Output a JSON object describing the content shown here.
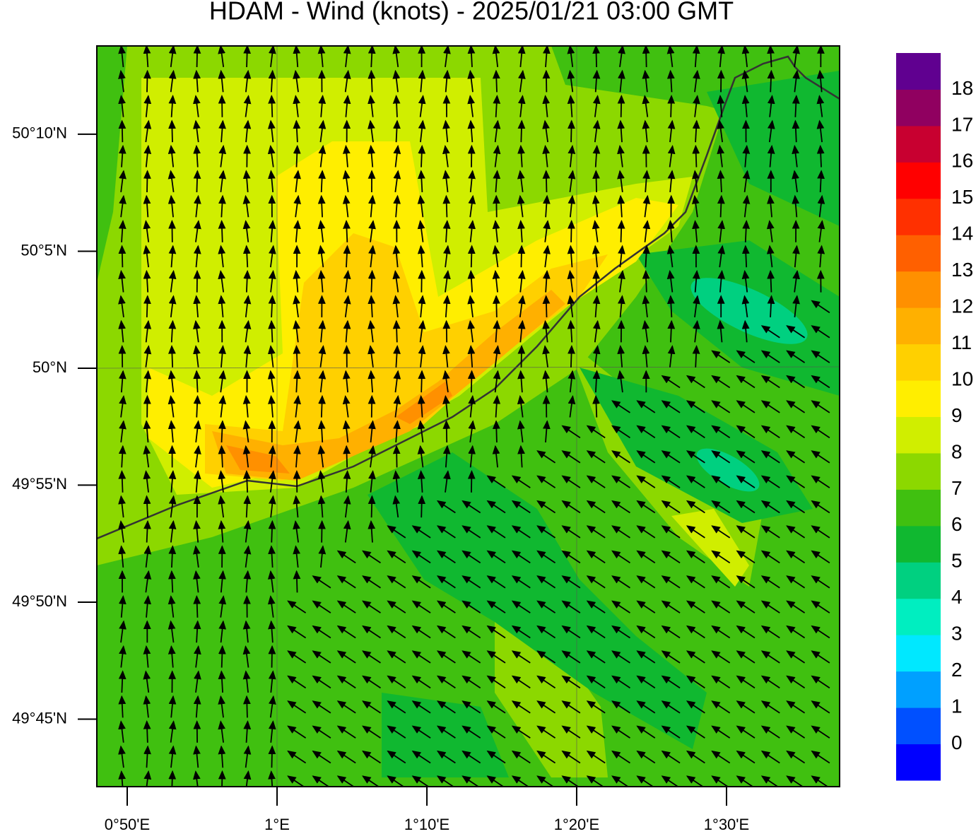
{
  "title": "HDAM - Wind (knots)  -  2025/01/21  03:00 GMT",
  "map": {
    "lon_range": [
      0.7995,
      1.6258
    ],
    "lat_range": [
      49.7019,
      50.2296
    ],
    "lat_ticks": [
      {
        "value": 50.1667,
        "label": "50°10'N"
      },
      {
        "value": 50.0833,
        "label": "50°5'N"
      },
      {
        "value": 50,
        "label": "50°N"
      },
      {
        "value": 49.9167,
        "label": "49°55'N"
      },
      {
        "value": 49.8333,
        "label": "49°50'N"
      },
      {
        "value": 49.75,
        "label": "49°45'N"
      }
    ],
    "lon_ticks": [
      {
        "value": 0.8333,
        "label": "0°50'E"
      },
      {
        "value": 1,
        "label": "1°E"
      },
      {
        "value": 1.1667,
        "label": "1°10'E"
      },
      {
        "value": 1.3333,
        "label": "1°20'E"
      },
      {
        "value": 1.5,
        "label": "1°30'E"
      }
    ]
  },
  "colorbar": {
    "levels": [
      0,
      1,
      2,
      3,
      4,
      5,
      6,
      7,
      8,
      9,
      10,
      11,
      12,
      13,
      14,
      15,
      16,
      17,
      18
    ],
    "colors": [
      "#0000ff",
      "#0050ff",
      "#00a0ff",
      "#00e8ff",
      "#00eec0",
      "#00d080",
      "#10b830",
      "#40c010",
      "#8cd800",
      "#d0ee00",
      "#ffee00",
      "#ffd000",
      "#ffb000",
      "#ff9000",
      "#ff6000",
      "#ff3000",
      "#ff0000",
      "#c80030",
      "#900060",
      "#600090"
    ]
  }
}
